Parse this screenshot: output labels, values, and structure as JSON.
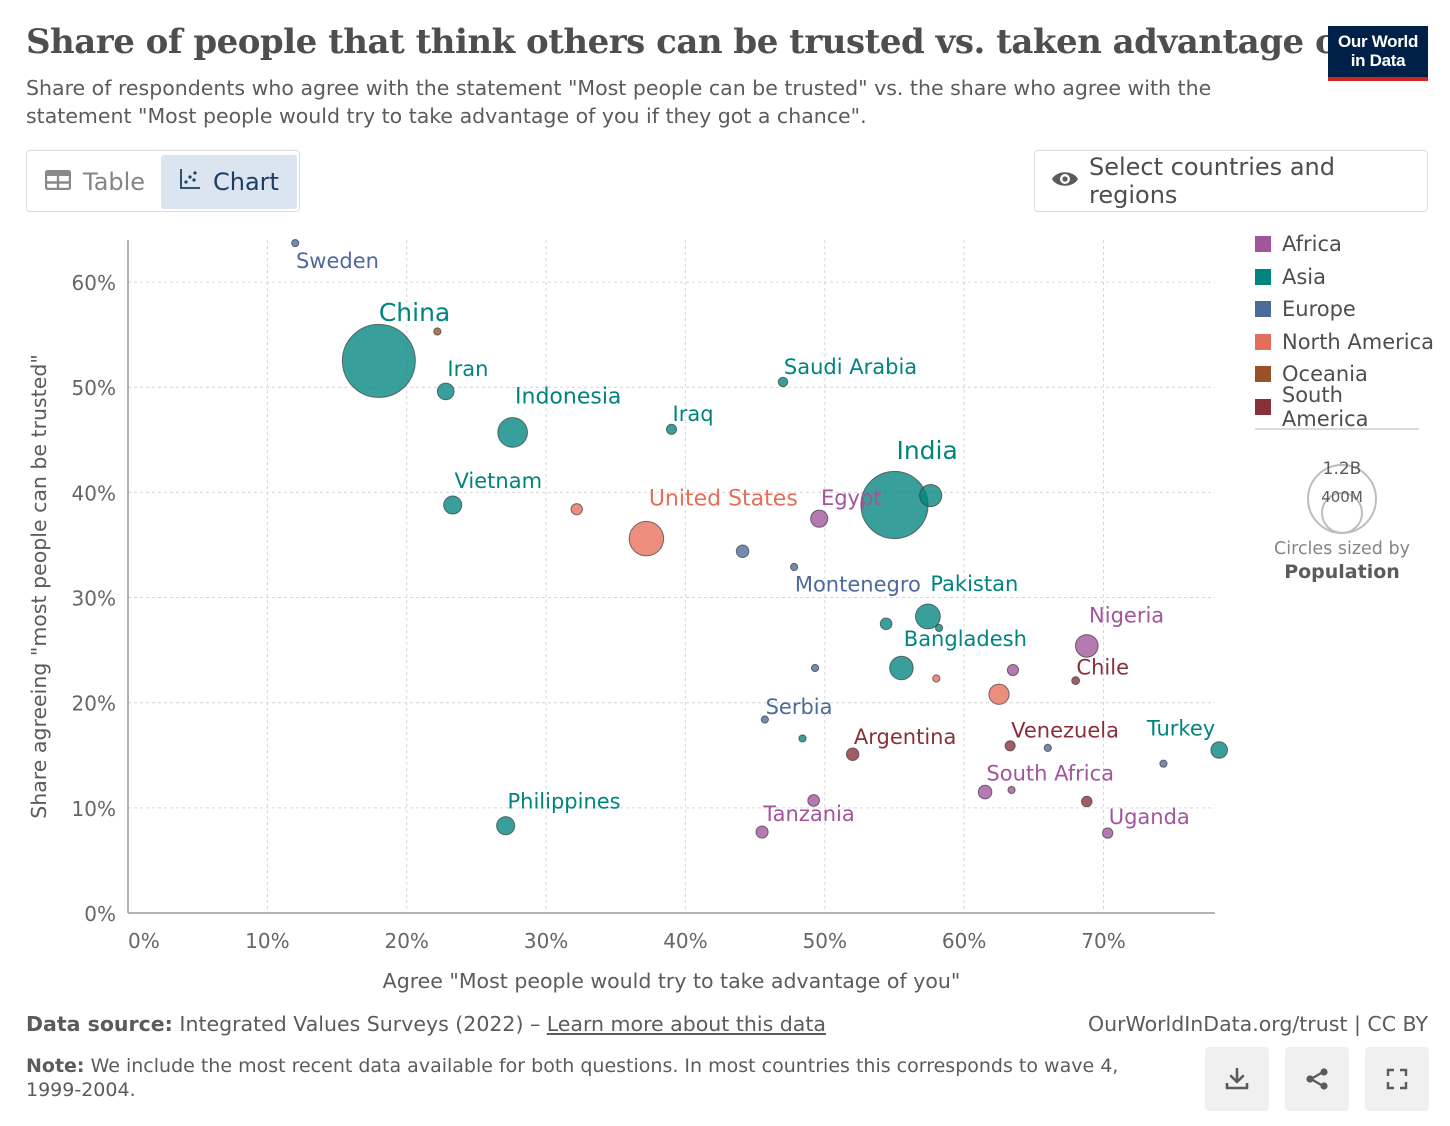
{
  "header": {
    "title": "Share of people that think others can be trusted vs. taken advantage of",
    "subtitle": "Share of respondents who agree with the statement \"Most people can be trusted\" vs. the share who agree with the statement \"Most people would try to take advantage of you if they got a chance\".",
    "logo_line1": "Our World",
    "logo_line2": "in Data"
  },
  "tabs": [
    {
      "label": "Table",
      "icon": "table-icon"
    },
    {
      "label": "Chart",
      "icon": "scatter-chart-icon",
      "active": true
    }
  ],
  "select_button": {
    "label": "Select countries and regions",
    "icon": "eye-icon"
  },
  "legend": {
    "items": [
      {
        "label": "Africa",
        "color": "#a2559c"
      },
      {
        "label": "Asia",
        "color": "#00847e"
      },
      {
        "label": "Europe",
        "color": "#4c6a9c"
      },
      {
        "label": "North America",
        "color": "#e56e5a"
      },
      {
        "label": "Oceania",
        "color": "#9a5129"
      },
      {
        "label": "South America",
        "color": "#883039"
      }
    ],
    "size_key": {
      "large_label": "1.2B",
      "small_label": "400M",
      "caption": "Circles sized by",
      "variable": "Population"
    }
  },
  "footer": {
    "source_label": "Data source:",
    "source_text": "Integrated Values Surveys (2022) –",
    "source_link": "Learn more about this data",
    "right_text": "OurWorldInData.org/trust | CC BY",
    "note_label": "Note:",
    "note_text": "We include the most recent data available for both questions. In most countries this corresponds to wave 4, 1999-2004."
  },
  "toolbar": {
    "buttons": [
      "download-icon",
      "share-icon",
      "fullscreen-icon"
    ]
  },
  "chart_data": {
    "type": "scatter",
    "title": "Share of people that think others can be trusted vs. taken advantage of",
    "xlabel": "Agree \"Most people would try to take advantage of you\"",
    "ylabel": "Share agreeing \"most people can be trusted\"",
    "xlim": [
      0,
      78
    ],
    "ylim": [
      0,
      64
    ],
    "xticks": [
      "0%",
      "10%",
      "20%",
      "30%",
      "40%",
      "50%",
      "60%",
      "70%"
    ],
    "yticks": [
      "0%",
      "10%",
      "20%",
      "30%",
      "40%",
      "50%",
      "60%"
    ],
    "xtick_values": [
      0,
      10,
      20,
      30,
      40,
      50,
      60,
      70
    ],
    "ytick_values": [
      0,
      10,
      20,
      30,
      40,
      50,
      60
    ],
    "grid": true,
    "legend_position": "right",
    "size_variable": "Population",
    "points": [
      {
        "label": "China",
        "x": 18.0,
        "y": 52.5,
        "region": "Asia",
        "pop": 1300
      },
      {
        "label": "India",
        "x": 55.0,
        "y": 38.8,
        "region": "Asia",
        "pop": 1100
      },
      {
        "label": "United States",
        "x": 37.2,
        "y": 35.6,
        "region": "North America",
        "pop": 290
      },
      {
        "label": "Indonesia",
        "x": 27.6,
        "y": 45.7,
        "region": "Asia",
        "pop": 215
      },
      {
        "label": "Pakistan",
        "x": 57.4,
        "y": 28.2,
        "region": "Asia",
        "pop": 150
      },
      {
        "label": "Nigeria",
        "x": 68.8,
        "y": 25.4,
        "region": "Africa",
        "pop": 125
      },
      {
        "label": "Bangladesh",
        "x": 55.5,
        "y": 23.3,
        "region": "Asia",
        "pop": 135
      },
      {
        "label": "Vietnam",
        "x": 23.3,
        "y": 38.8,
        "region": "Asia",
        "pop": 80
      },
      {
        "label": "Philippines",
        "x": 27.1,
        "y": 8.3,
        "region": "Asia",
        "pop": 80
      },
      {
        "label": "Iran",
        "x": 22.8,
        "y": 49.6,
        "region": "Asia",
        "pop": 68
      },
      {
        "label": "Egypt",
        "x": 49.6,
        "y": 37.5,
        "region": "Africa",
        "pop": 72
      },
      {
        "label": "",
        "x": 57.6,
        "y": 39.7,
        "region": "Asia",
        "pop": 120
      },
      {
        "label": "",
        "x": 62.5,
        "y": 20.8,
        "region": "North America",
        "pop": 100
      },
      {
        "label": "Turkey",
        "x": 78.3,
        "y": 15.5,
        "region": "Asia",
        "pop": 67
      },
      {
        "label": "South Africa",
        "x": 61.5,
        "y": 11.5,
        "region": "Africa",
        "pop": 45
      },
      {
        "label": "Tanzania",
        "x": 45.5,
        "y": 7.7,
        "region": "Africa",
        "pop": 36
      },
      {
        "label": "Uganda",
        "x": 70.3,
        "y": 7.6,
        "region": "Africa",
        "pop": 26
      },
      {
        "label": "Argentina",
        "x": 52.0,
        "y": 15.1,
        "region": "South America",
        "pop": 38
      },
      {
        "label": "Venezuela",
        "x": 63.3,
        "y": 15.9,
        "region": "South America",
        "pop": 25
      },
      {
        "label": "Chile",
        "x": 68.0,
        "y": 22.1,
        "region": "South America",
        "pop": 15
      },
      {
        "label": "Saudi Arabia",
        "x": 47.0,
        "y": 50.5,
        "region": "Asia",
        "pop": 22
      },
      {
        "label": "Iraq",
        "x": 39.0,
        "y": 46.0,
        "region": "Asia",
        "pop": 25
      },
      {
        "label": "Montenegro",
        "x": 47.8,
        "y": 32.9,
        "region": "Europe",
        "pop": 0.6
      },
      {
        "label": "Serbia",
        "x": 45.7,
        "y": 18.4,
        "region": "Europe",
        "pop": 7.5
      },
      {
        "label": "Sweden",
        "x": 12.0,
        "y": 63.7,
        "region": "Europe",
        "pop": 9
      },
      {
        "label": "",
        "x": 44.1,
        "y": 34.4,
        "region": "Europe",
        "pop": 38
      },
      {
        "label": "",
        "x": 32.2,
        "y": 38.4,
        "region": "North America",
        "pop": 31
      },
      {
        "label": "",
        "x": 22.2,
        "y": 55.3,
        "region": "Oceania",
        "pop": 4
      },
      {
        "label": "",
        "x": 54.4,
        "y": 27.5,
        "region": "Asia",
        "pop": 33
      },
      {
        "label": "",
        "x": 58.2,
        "y": 27.1,
        "region": "Asia",
        "pop": 5
      },
      {
        "label": "",
        "x": 49.3,
        "y": 23.3,
        "region": "Europe",
        "pop": 3
      },
      {
        "label": "",
        "x": 63.5,
        "y": 23.1,
        "region": "Africa",
        "pop": 30
      },
      {
        "label": "",
        "x": 58.0,
        "y": 22.3,
        "region": "North America",
        "pop": 5
      },
      {
        "label": "",
        "x": 48.4,
        "y": 16.6,
        "region": "Asia",
        "pop": 5
      },
      {
        "label": "",
        "x": 66.0,
        "y": 15.7,
        "region": "Europe",
        "pop": 10
      },
      {
        "label": "",
        "x": 74.3,
        "y": 14.2,
        "region": "Europe",
        "pop": 8
      },
      {
        "label": "",
        "x": 49.2,
        "y": 10.7,
        "region": "Africa",
        "pop": 33
      },
      {
        "label": "",
        "x": 63.4,
        "y": 11.7,
        "region": "Africa",
        "pop": 11
      },
      {
        "label": "",
        "x": 68.8,
        "y": 10.6,
        "region": "South America",
        "pop": 27
      }
    ]
  }
}
